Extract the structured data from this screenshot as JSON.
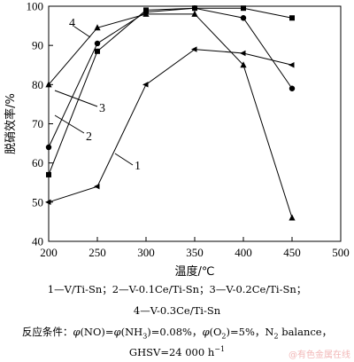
{
  "chart_data": {
    "type": "line",
    "xlabel": "温度/℃",
    "ylabel": "脱硝效率/%",
    "xlim": [
      200,
      500
    ],
    "ylim": [
      40,
      100
    ],
    "xticks": [
      200,
      250,
      300,
      350,
      400,
      450,
      500
    ],
    "yticks": [
      40,
      50,
      60,
      70,
      80,
      90,
      100
    ],
    "grid": false,
    "series": [
      {
        "name": "1",
        "marker": "diamond",
        "x": [
          200,
          250,
          300,
          350,
          400,
          450
        ],
        "y": [
          50,
          54,
          80,
          89,
          88,
          85
        ]
      },
      {
        "name": "2",
        "marker": "square",
        "x": [
          200,
          250,
          300,
          350,
          400,
          450
        ],
        "y": [
          57,
          88.5,
          99,
          99.5,
          99.5,
          97
        ]
      },
      {
        "name": "3",
        "marker": "circle",
        "x": [
          200,
          250,
          300,
          350,
          400,
          450
        ],
        "y": [
          64,
          90.5,
          98.5,
          99.5,
          97,
          79
        ]
      },
      {
        "name": "4",
        "marker": "triangle",
        "x": [
          200,
          250,
          300,
          350,
          400,
          450
        ],
        "y": [
          80,
          94.5,
          98,
          98,
          85,
          46
        ]
      }
    ]
  },
  "captions": {
    "legend_line1": "1—V/Ti-Sn；2—V-0.1Ce/Ti-Sn；3—V-0.2Ce/Ti-Sn；",
    "legend_line2": "4—V-0.3Ce/Ti-Sn",
    "cond_prefix": "反应条件：",
    "phi": "φ",
    "no_expr": "(NO)=",
    "nh3_expr": "(NH",
    "nh3_sub": "3",
    "nh3_val": ")=0.08%，",
    "o2_expr": "(O",
    "o2_sub": "2",
    "o2_val": ")=5%，",
    "n2": "N",
    "n2_sub": "2",
    "n2_tail": " balance，",
    "ghsv": "GHSV=24 000 h",
    "ghsv_sup": "−1"
  },
  "watermark": "@有色金属在线"
}
